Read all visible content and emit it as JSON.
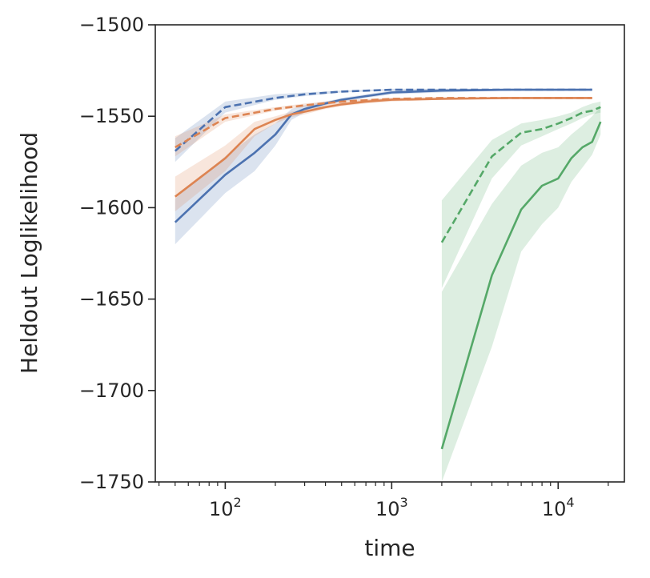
{
  "chart_data": {
    "type": "line",
    "title": "",
    "xlabel": "time",
    "ylabel": "Heldout Loglikelihood",
    "xscale": "log",
    "xlim": [
      38,
      25000
    ],
    "ylim": [
      -1750,
      -1500
    ],
    "yticks": [
      -1500,
      -1550,
      -1600,
      -1650,
      -1700,
      -1750
    ],
    "ytick_labels": [
      "−1500",
      "−1550",
      "−1600",
      "−1650",
      "−1700",
      "−1750"
    ],
    "xticks": [
      100,
      1000,
      10000
    ],
    "xtick_base": "10",
    "xtick_exponents": [
      "2",
      "3",
      "4"
    ],
    "grid": false,
    "legend": "none",
    "series": [
      {
        "color": "#4c72b0",
        "style": "solid",
        "x": [
          50,
          100,
          150,
          200,
          250,
          300,
          400,
          500,
          700,
          1000,
          2000,
          5000,
          10000,
          16000
        ],
        "y": [
          -1608,
          -1582,
          -1570,
          -1560,
          -1549,
          -1546,
          -1543,
          -1541,
          -1539,
          -1537,
          -1536,
          -1535.5,
          -1535.5,
          -1535.5
        ],
        "band_lower": [
          -1620,
          -1592,
          -1580,
          -1566,
          -1552,
          -1548,
          -1544,
          -1542,
          -1540,
          -1538,
          -1537,
          -1536,
          -1536,
          -1536
        ],
        "band_upper": [
          -1595,
          -1572,
          -1560,
          -1554,
          -1546,
          -1544,
          -1542,
          -1540,
          -1538,
          -1536,
          -1535,
          -1535,
          -1535,
          -1535
        ]
      },
      {
        "color": "#4c72b0",
        "style": "dashed",
        "x": [
          50,
          100,
          200,
          300,
          500,
          1000,
          2000,
          5000,
          10000,
          16000
        ],
        "y": [
          -1569,
          -1545,
          -1540,
          -1538,
          -1536.5,
          -1535.5,
          -1535.5,
          -1535.5,
          -1535.5,
          -1535.5
        ],
        "band_lower": [
          -1575,
          -1548,
          -1541,
          -1539,
          -1537,
          -1536,
          -1536,
          -1536,
          -1536,
          -1536
        ],
        "band_upper": [
          -1562,
          -1542,
          -1538,
          -1537,
          -1536,
          -1535,
          -1535,
          -1535,
          -1535,
          -1535
        ]
      },
      {
        "color": "#dd8452",
        "style": "solid",
        "x": [
          50,
          100,
          150,
          200,
          250,
          300,
          400,
          500,
          700,
          1000,
          2000,
          5000,
          10000,
          16000
        ],
        "y": [
          -1594,
          -1573,
          -1557,
          -1552,
          -1549,
          -1547.5,
          -1545,
          -1543.5,
          -1542,
          -1541,
          -1540.5,
          -1540,
          -1540,
          -1540
        ],
        "band_lower": [
          -1602,
          -1580,
          -1561,
          -1554,
          -1550.5,
          -1549,
          -1546,
          -1544.5,
          -1543,
          -1542,
          -1541,
          -1540.5,
          -1540.5,
          -1540.5
        ],
        "band_upper": [
          -1583,
          -1566,
          -1553,
          -1550,
          -1547.5,
          -1546,
          -1544,
          -1542.5,
          -1541,
          -1540,
          -1540,
          -1539.5,
          -1539.5,
          -1539.5
        ]
      },
      {
        "color": "#dd8452",
        "style": "dashed",
        "x": [
          50,
          100,
          200,
          300,
          500,
          1000,
          2000,
          5000,
          10000,
          16000
        ],
        "y": [
          -1567,
          -1551,
          -1546,
          -1544,
          -1542,
          -1540.5,
          -1540,
          -1540,
          -1540,
          -1540
        ],
        "band_lower": [
          -1572,
          -1553,
          -1547,
          -1545,
          -1543,
          -1541,
          -1540.5,
          -1540.5,
          -1540.5,
          -1540.5
        ],
        "band_upper": [
          -1561,
          -1549,
          -1545,
          -1543,
          -1541,
          -1540,
          -1539.5,
          -1539.5,
          -1539.5,
          -1539.5
        ]
      },
      {
        "color": "#55a868",
        "style": "solid",
        "x": [
          2000,
          4000,
          6000,
          8000,
          10000,
          12000,
          14000,
          16000,
          18000
        ],
        "y": [
          -1732,
          -1637,
          -1601,
          -1588,
          -1584,
          -1573,
          -1567,
          -1564,
          -1553
        ],
        "band_lower": [
          -1752,
          -1676,
          -1624,
          -1609,
          -1600,
          -1586,
          -1578,
          -1571,
          -1560
        ],
        "band_upper": [
          -1646,
          -1598,
          -1577,
          -1570,
          -1567,
          -1560,
          -1555,
          -1550,
          -1545
        ]
      },
      {
        "color": "#55a868",
        "style": "dashed",
        "x": [
          2000,
          4000,
          6000,
          8000,
          10000,
          12000,
          14000,
          16000,
          18000
        ],
        "y": [
          -1619,
          -1572,
          -1559,
          -1557,
          -1554,
          -1551,
          -1548,
          -1547,
          -1545
        ],
        "band_lower": [
          -1644,
          -1584,
          -1566,
          -1561,
          -1557,
          -1554,
          -1551,
          -1549,
          -1548
        ],
        "band_upper": [
          -1596,
          -1563,
          -1554,
          -1552,
          -1550,
          -1548,
          -1545,
          -1543,
          -1542
        ]
      }
    ]
  }
}
